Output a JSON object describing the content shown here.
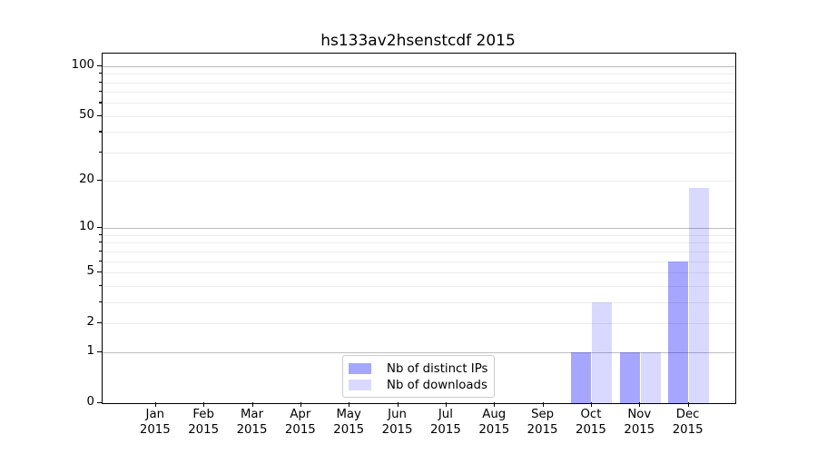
{
  "chart_data": {
    "type": "bar",
    "title": "hs133av2hsenstcdf 2015",
    "categories": [
      "Jan",
      "Feb",
      "Mar",
      "Apr",
      "May",
      "Jun",
      "Jul",
      "Aug",
      "Sep",
      "Oct",
      "Nov",
      "Dec"
    ],
    "tick_year": "2015",
    "series": [
      {
        "name": "Nb of distinct IPs",
        "color": "rgba(0,0,255,0.35)",
        "values": [
          0,
          0,
          0,
          0,
          0,
          0,
          0,
          0,
          0,
          1,
          1,
          6
        ]
      },
      {
        "name": "Nb of downloads",
        "color": "rgba(0,0,255,0.15)",
        "values": [
          0,
          0,
          0,
          0,
          0,
          0,
          0,
          0,
          0,
          3,
          1,
          18
        ]
      }
    ],
    "xlabel": "",
    "ylabel": "",
    "yscale": "log1p",
    "ylim": [
      0,
      119
    ],
    "yticks_labeled": [
      0,
      1,
      2,
      5,
      10,
      20,
      50,
      100
    ],
    "yticks_major": [
      1,
      10,
      100
    ],
    "yticks_minor": [
      2,
      3,
      4,
      5,
      6,
      7,
      8,
      9,
      20,
      30,
      40,
      50,
      60,
      70,
      80,
      90
    ],
    "grid": "on",
    "legend_position": "lower-center"
  },
  "colors": {
    "grid_major": "#bdbdbd",
    "grid_minor": "#ececec",
    "axis": "#000000",
    "legend_border": "#cccccc",
    "background": "#ffffff"
  }
}
